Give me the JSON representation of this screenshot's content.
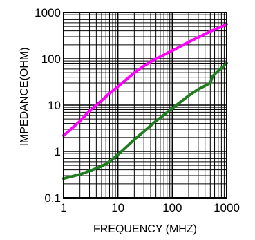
{
  "chart_data": {
    "type": "line",
    "xlabel": "FREQUENCY (MHZ)",
    "ylabel": "IMPEDANCE(OHM)",
    "x_scale": "log",
    "y_scale": "log",
    "xlim": [
      1,
      1000
    ],
    "ylim": [
      0.1,
      1000
    ],
    "grid": true,
    "x_ticks": [
      {
        "value": 1,
        "label": "1"
      },
      {
        "value": 10,
        "label": "10"
      },
      {
        "value": 100,
        "label": "100"
      },
      {
        "value": 1000,
        "label": "1000"
      }
    ],
    "y_ticks": [
      {
        "value": 0.1,
        "label": "0.1"
      },
      {
        "value": 1,
        "label": "1"
      },
      {
        "value": 10,
        "label": "10"
      },
      {
        "value": 100,
        "label": "100"
      },
      {
        "value": 1000,
        "label": "1000"
      }
    ],
    "series": [
      {
        "color": "#ff00ff",
        "x": [
          1,
          2,
          3,
          5,
          7,
          10,
          20,
          30,
          50,
          100,
          200,
          500,
          1000
        ],
        "y": [
          2.2,
          4.5,
          7.5,
          12.5,
          18,
          25,
          50,
          70,
          100,
          150,
          230,
          390,
          560
        ]
      },
      {
        "color": "#1f7d1f",
        "x": [
          1,
          2,
          3,
          5,
          7,
          10,
          20,
          30,
          50,
          100,
          200,
          300,
          500,
          550,
          700,
          1000
        ],
        "y": [
          0.26,
          0.32,
          0.38,
          0.48,
          0.6,
          0.85,
          1.8,
          2.7,
          4.5,
          8.5,
          16,
          22,
          30,
          42,
          55,
          80
        ]
      }
    ]
  }
}
